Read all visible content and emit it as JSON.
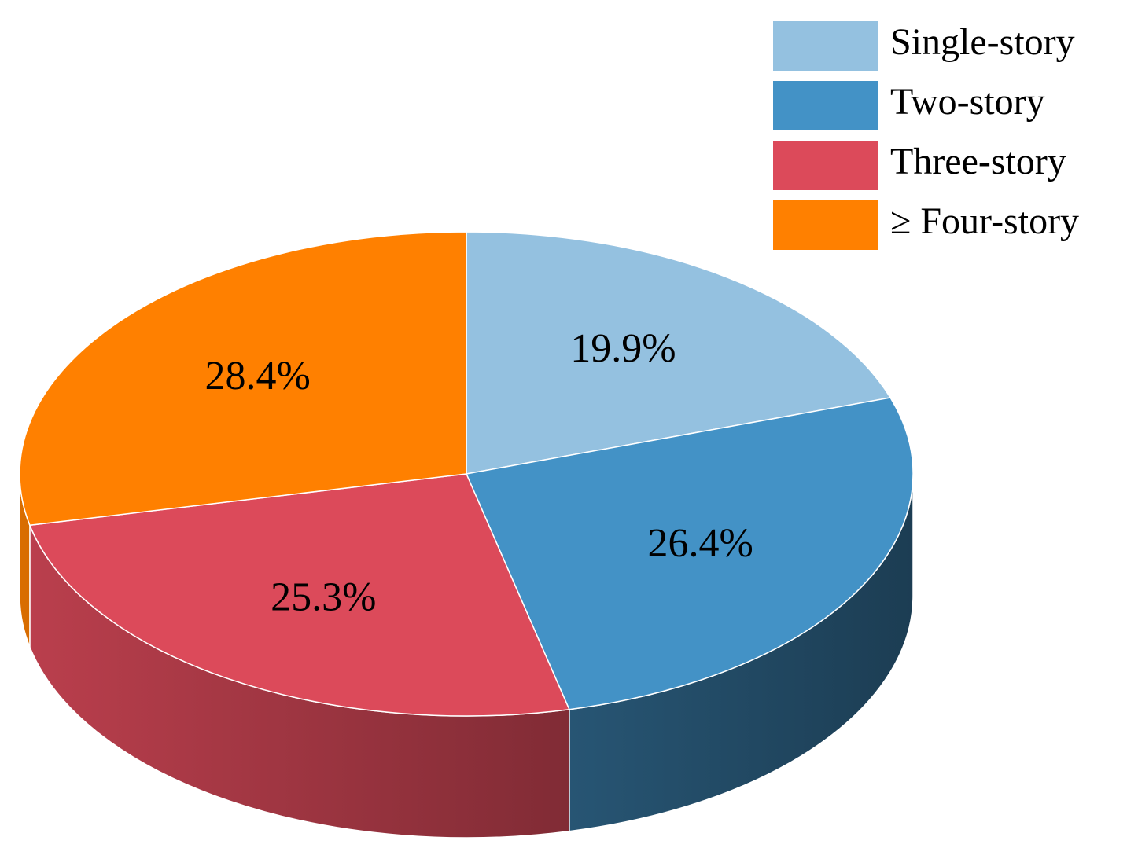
{
  "chart_data": {
    "type": "pie3d",
    "categories": [
      "Single-story",
      "Two-story",
      "Three-story",
      "≥ Four-story"
    ],
    "values": [
      19.9,
      26.4,
      25.3,
      28.4
    ],
    "value_labels": [
      "19.9%",
      "26.4%",
      "25.3%",
      "28.4%"
    ],
    "colors": [
      "#94c1e0",
      "#4392c6",
      "#dc4a5a",
      "#ff8000"
    ],
    "legend": "upper right"
  }
}
